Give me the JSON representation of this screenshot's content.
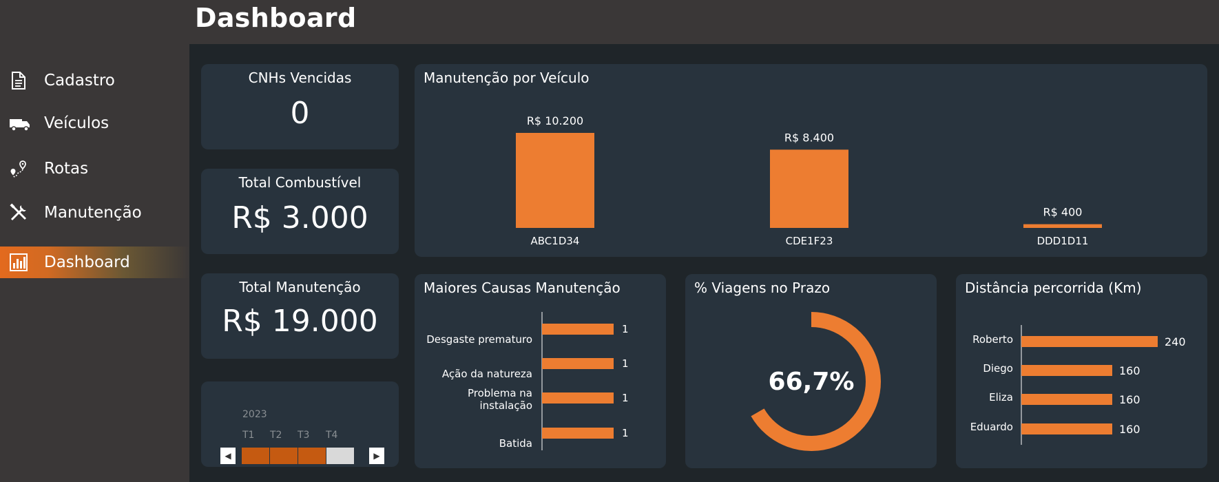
{
  "header": {
    "title": "Dashboard"
  },
  "sidebar": {
    "items": [
      {
        "label": "Cadastro",
        "icon": "document-icon",
        "active": false
      },
      {
        "label": "Veículos",
        "icon": "truck-icon",
        "active": false
      },
      {
        "label": "Rotas",
        "icon": "route-icon",
        "active": false
      },
      {
        "label": "Manutenção",
        "icon": "tools-icon",
        "active": false
      },
      {
        "label": "Dashboard",
        "icon": "chart-icon",
        "active": true
      }
    ]
  },
  "kpis": {
    "cnh": {
      "title": "CNHs Vencidas",
      "value": "0"
    },
    "fuel": {
      "title": "Total Combustível",
      "value": "R$ 3.000"
    },
    "maintenance": {
      "title": "Total Manutenção",
      "value": "R$ 19.000"
    }
  },
  "slicer": {
    "year": "2023",
    "quarters": [
      "T1",
      "T2",
      "T3",
      "T4"
    ],
    "selected": [
      true,
      true,
      true,
      false
    ],
    "prev": "◀",
    "next": "▶"
  },
  "colors": {
    "accent": "#ed7d31",
    "card": "#28333d",
    "slicer_fill": "#c55a11",
    "slicer_off": "#d9d9d9"
  },
  "chart_data": [
    {
      "type": "bar",
      "title": "Manutenção por Veículo",
      "categories": [
        "ABC1D34",
        "CDE1F23",
        "DDD1D11"
      ],
      "values": [
        10200,
        8400,
        400
      ],
      "labels": [
        "R$ 10.200",
        "R$ 8.400",
        "R$ 400"
      ],
      "ylim": [
        0,
        10200
      ]
    },
    {
      "type": "bar",
      "orientation": "horizontal",
      "title": "Maiores Causas Manutenção",
      "categories": [
        "Desgaste prematuro",
        "Ação da natureza",
        "Problema na instalação",
        "Batida"
      ],
      "category_lines": [
        [
          "Desgaste prematuro"
        ],
        [
          "Ação da natureza"
        ],
        [
          "Problema na",
          "instalação"
        ],
        [
          "Batida"
        ]
      ],
      "values": [
        1,
        1,
        1,
        1
      ],
      "labels": [
        "1",
        "1",
        "1",
        "1"
      ],
      "xlim": [
        0,
        1
      ]
    },
    {
      "type": "pie",
      "variant": "donut",
      "title": "% Viagens no Prazo",
      "values": [
        66.7,
        33.3
      ],
      "center_label": "66,7%"
    },
    {
      "type": "bar",
      "orientation": "horizontal",
      "title": "Distância percorrida (Km)",
      "categories": [
        "Roberto",
        "Diego",
        "Eliza",
        "Eduardo"
      ],
      "values": [
        240,
        160,
        160,
        160
      ],
      "labels": [
        "240",
        "160",
        "160",
        "160"
      ],
      "xlim": [
        0,
        240
      ]
    }
  ]
}
